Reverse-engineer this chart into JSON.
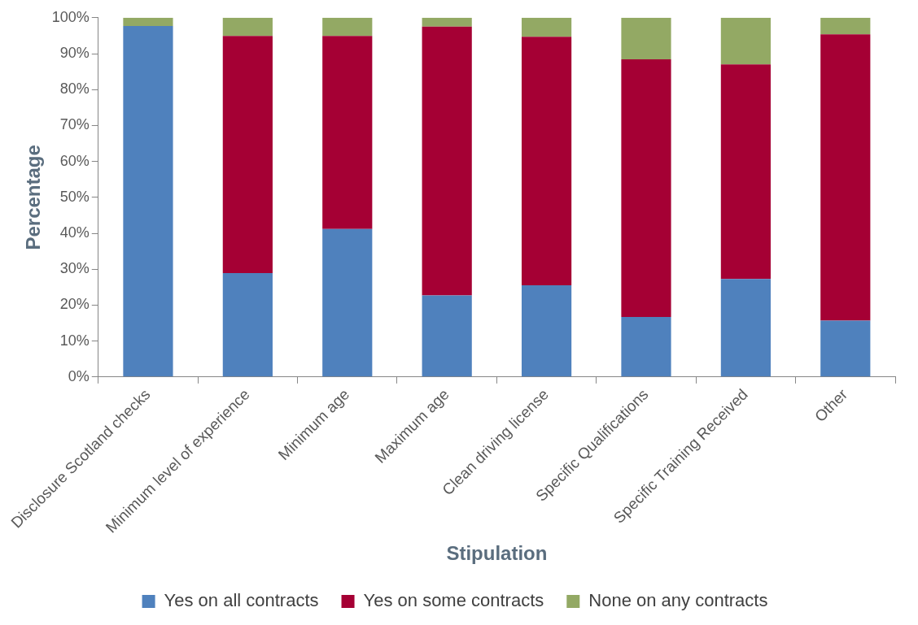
{
  "chart_data": {
    "type": "bar",
    "stacked": true,
    "xlabel": "Stipulation",
    "ylabel": "Percentage",
    "categories": [
      "Disclosure Scotland checks",
      "Minimum level of experience",
      "Minimum age",
      "Maximum age",
      "Clean driving license",
      "Specific Qualifications",
      "Specific Training Received",
      "Other"
    ],
    "series": [
      {
        "name": "Yes on all contracts",
        "color": "#4f81bd",
        "values": [
          97.7,
          28.9,
          41.2,
          22.7,
          25.5,
          16.7,
          27.3,
          15.7
        ]
      },
      {
        "name": "Yes on some contracts",
        "color": "#a50034",
        "values": [
          0,
          66.0,
          53.7,
          74.8,
          69.2,
          71.7,
          59.7,
          79.7
        ]
      },
      {
        "name": "None on any contracts",
        "color": "#93a964",
        "values": [
          2.3,
          5.1,
          5.1,
          2.5,
          5.3,
          11.6,
          13.0,
          4.6
        ]
      }
    ],
    "ylim": [
      0,
      100
    ],
    "yticks": [
      {
        "value": 0,
        "label": "0%"
      },
      {
        "value": 10,
        "label": "10%"
      },
      {
        "value": 20,
        "label": "20%"
      },
      {
        "value": 30,
        "label": "30%"
      },
      {
        "value": 40,
        "label": "40%"
      },
      {
        "value": 50,
        "label": "50%"
      },
      {
        "value": 60,
        "label": "60%"
      },
      {
        "value": 70,
        "label": "70%"
      },
      {
        "value": 80,
        "label": "80%"
      },
      {
        "value": 90,
        "label": "90%"
      },
      {
        "value": 100,
        "label": "100%"
      }
    ],
    "grid": false,
    "legend": "bottom"
  }
}
